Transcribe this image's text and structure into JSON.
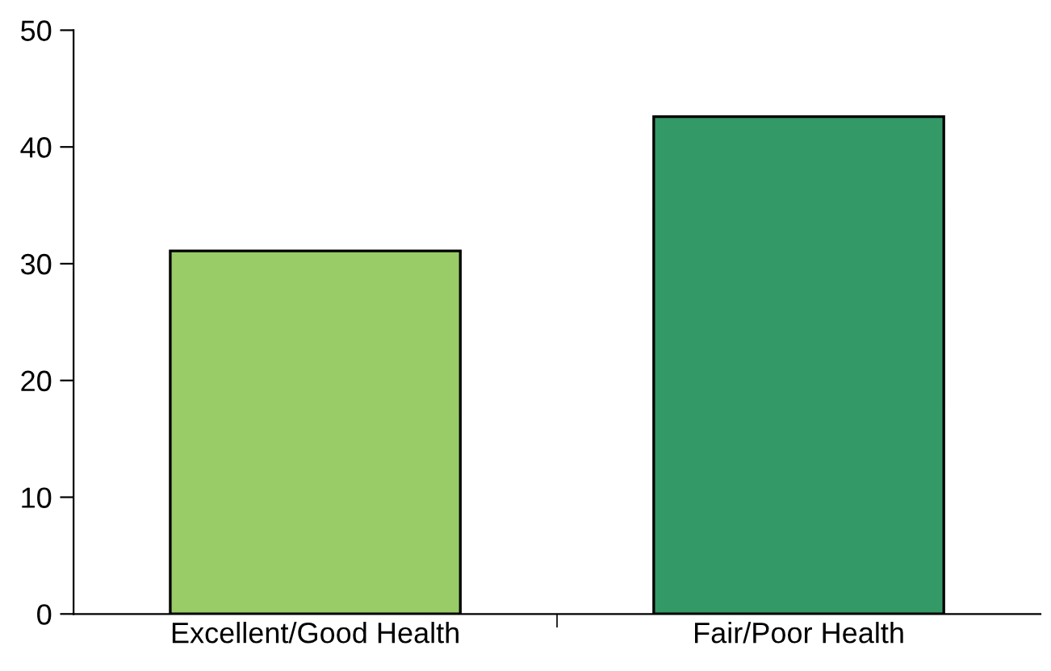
{
  "chart_data": {
    "type": "bar",
    "categories": [
      "Excellent/Good Health",
      "Fair/Poor Health"
    ],
    "values": [
      31.1,
      42.6
    ],
    "colors": [
      "#99cc66",
      "#339966"
    ],
    "ylim": [
      0,
      50
    ],
    "yticks": [
      0,
      10,
      20,
      30,
      40,
      50
    ],
    "grid": false,
    "legend": false
  }
}
